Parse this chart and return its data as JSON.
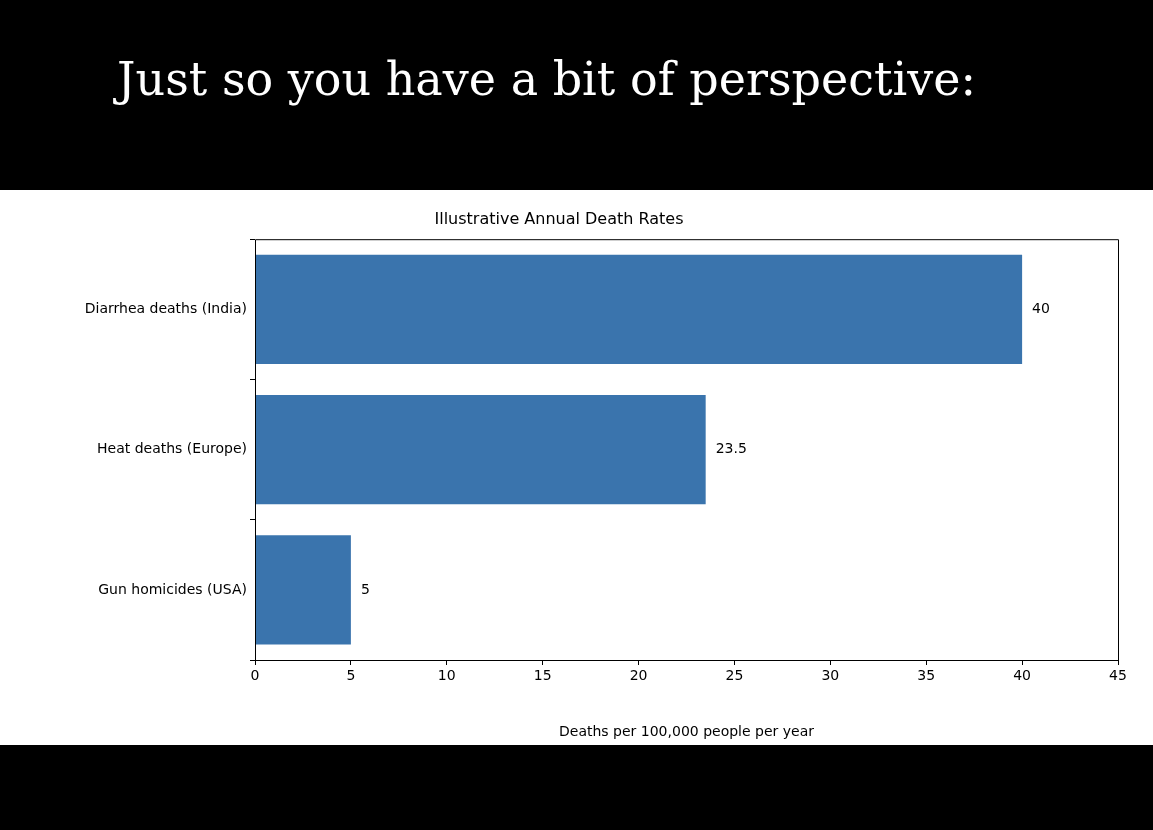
{
  "chart_data": {
    "type": "bar",
    "orientation": "horizontal",
    "title": "Just so you have a bit of perspective:",
    "subtitle": "Illustrative Annual Death Rates",
    "xlabel": "Deaths per 100,000 people per year",
    "categories": [
      "Diarrhea deaths (India)",
      "Heat deaths (Europe)",
      "Gun homicides (USA)"
    ],
    "values": [
      40,
      23.5,
      5
    ],
    "color": "#3a74ad",
    "xlim": [
      0,
      45
    ],
    "xticks": [
      0,
      5,
      10,
      15,
      20,
      25,
      30,
      35,
      40,
      45
    ],
    "grid": false,
    "data_labels": true
  }
}
